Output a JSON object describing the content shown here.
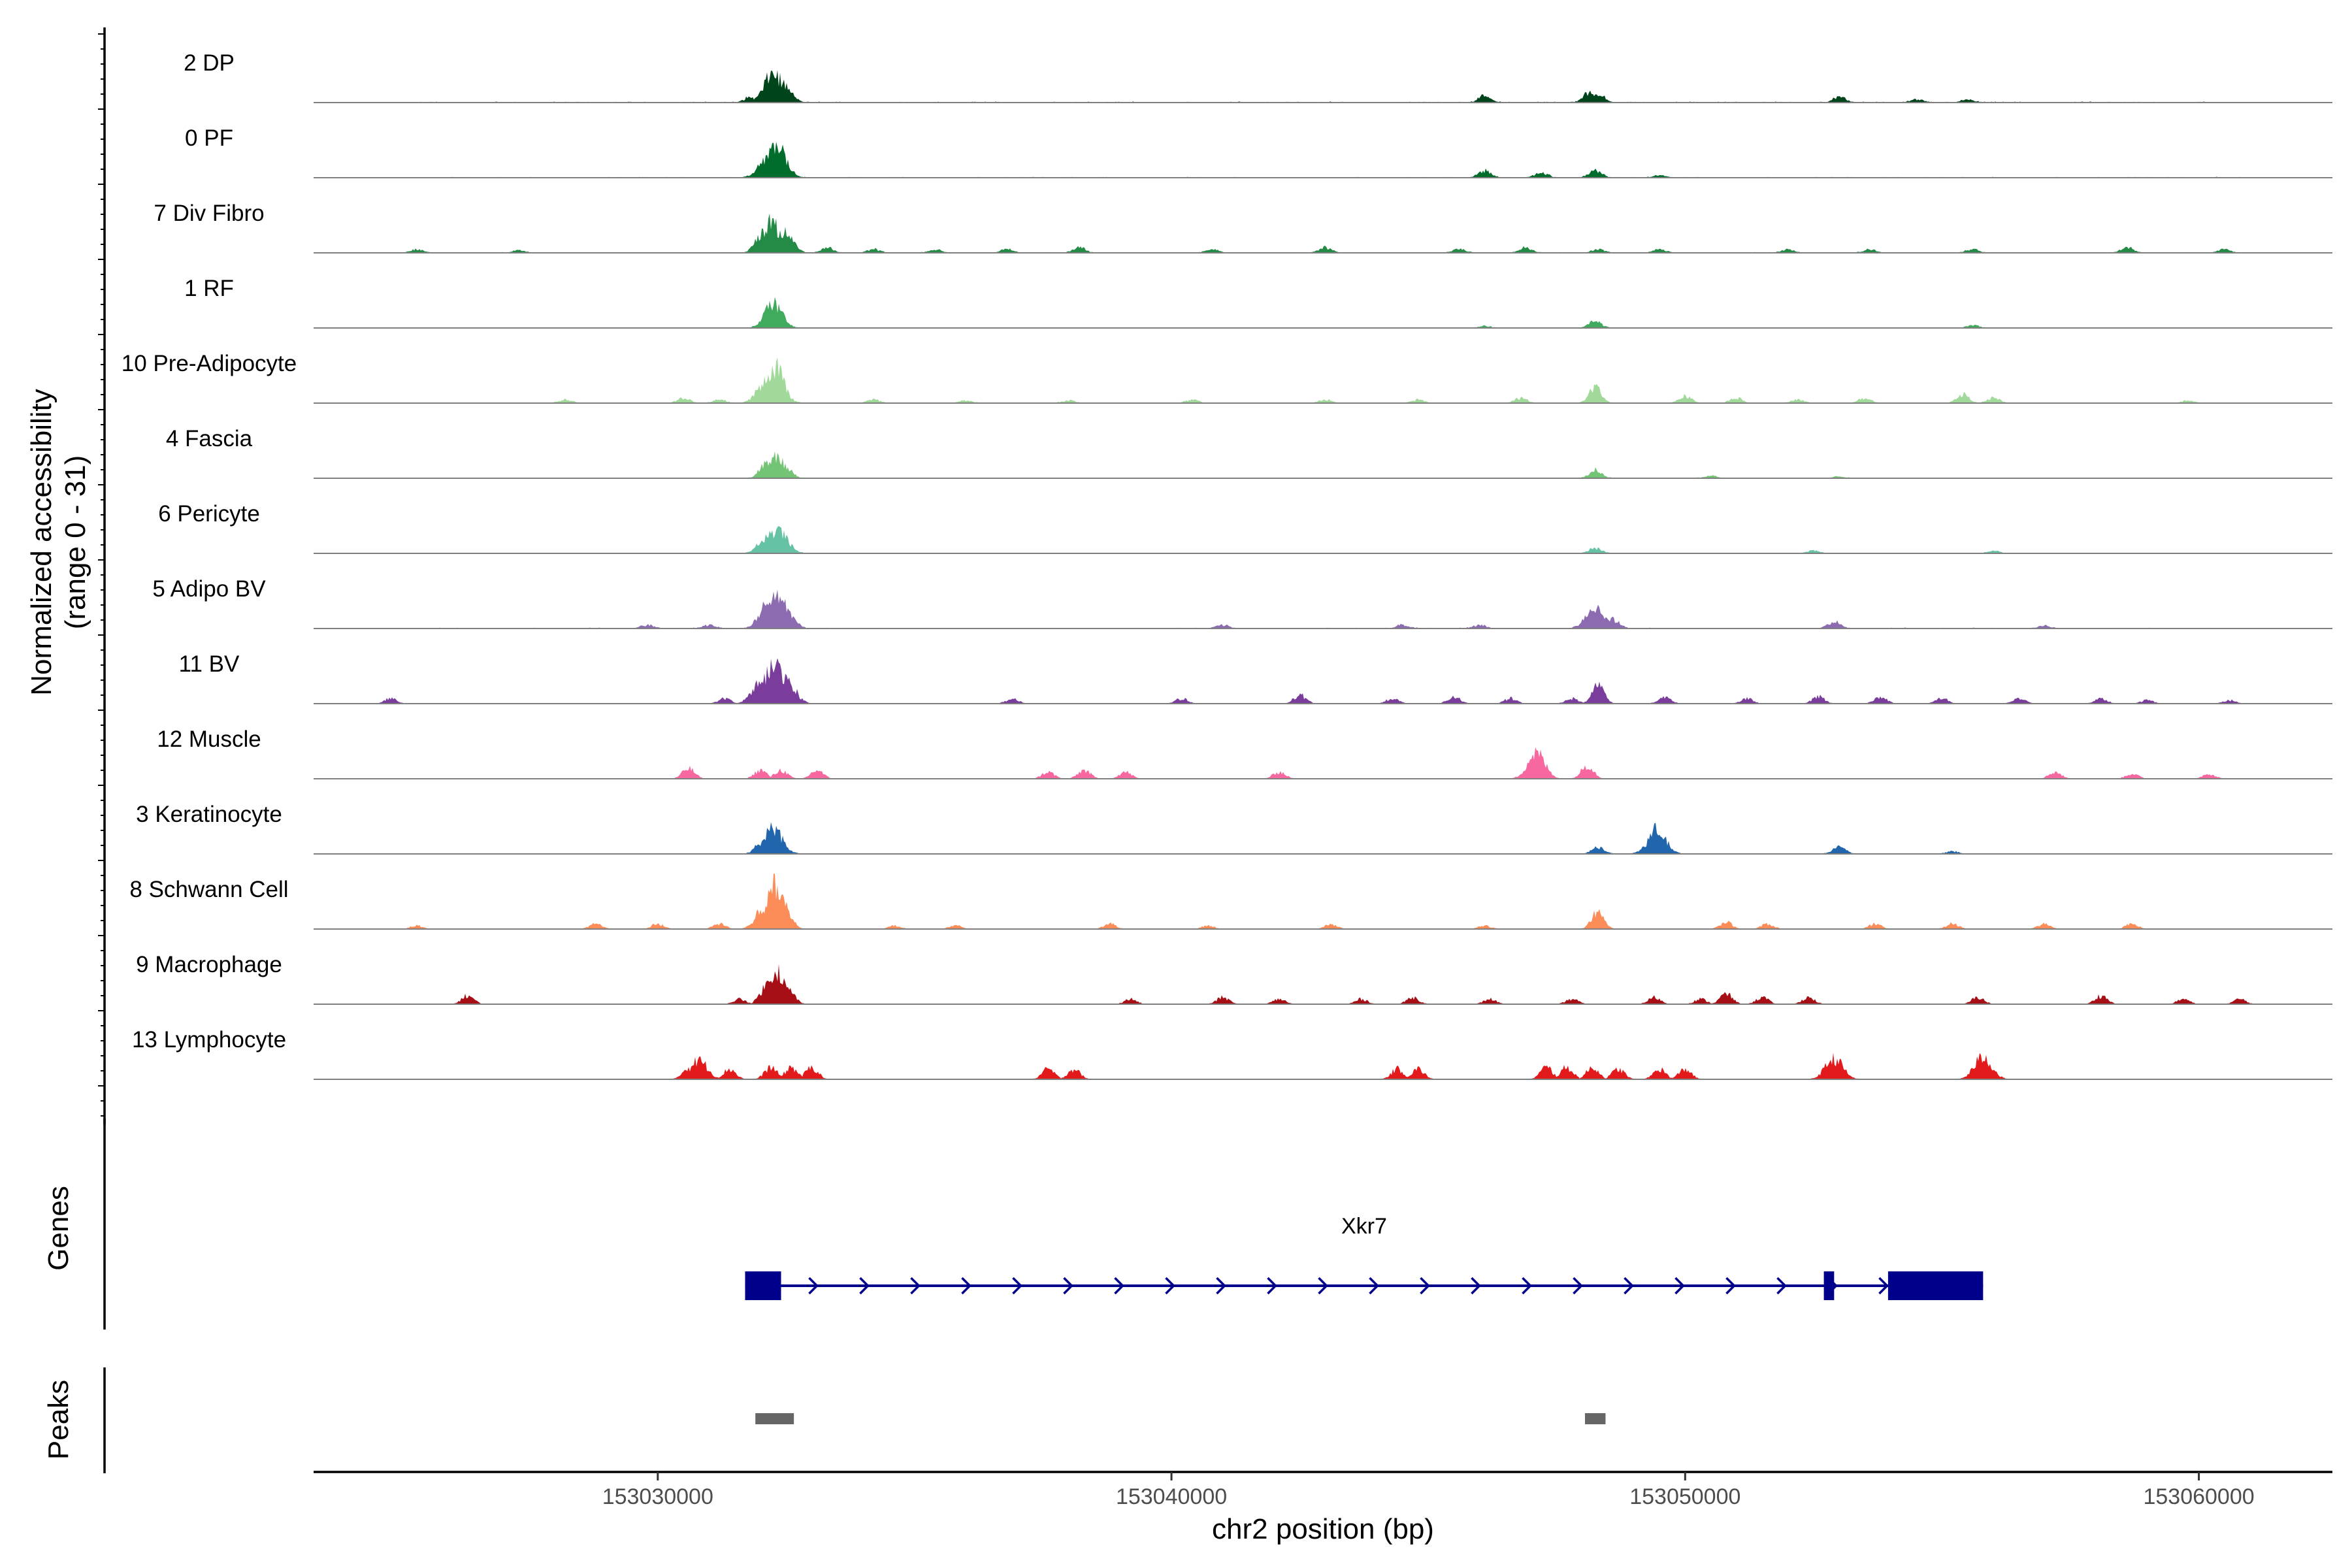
{
  "chart_data": {
    "type": "area",
    "title": "",
    "xlabel": "chr2 position (bp)",
    "ylabel": [
      "Normalized accessibility",
      "(range 0 - 31)"
    ],
    "xlim": [
      153023300,
      153062600
    ],
    "ylim": [
      0,
      31
    ],
    "x_ticks": [
      153030000,
      153040000,
      153050000,
      153060000
    ],
    "x_tick_labels": [
      "153030000",
      "153040000",
      "153050000",
      "153060000"
    ],
    "grid": false,
    "legend": "none",
    "tracks": [
      {
        "name": "2 DP",
        "color": "#00441B",
        "noise": 0.6,
        "peaks": [
          [
            153032100,
            7
          ],
          [
            153032250,
            17
          ],
          [
            153032400,
            11
          ],
          [
            153031800,
            3
          ],
          [
            153046100,
            4
          ],
          [
            153048150,
            6
          ],
          [
            153048300,
            5
          ],
          [
            153053000,
            3
          ],
          [
            153054500,
            1.5
          ],
          [
            153055500,
            1.5
          ]
        ]
      },
      {
        "name": "0 PF",
        "color": "#006D2C",
        "noise": 0.5,
        "peaks": [
          [
            153032150,
            12
          ],
          [
            153032320,
            19
          ],
          [
            153046100,
            4
          ],
          [
            153047200,
            3
          ],
          [
            153048250,
            4
          ],
          [
            153049500,
            1.5
          ]
        ]
      },
      {
        "name": "7 Div Fibro",
        "color": "#238B45",
        "noise": 0.4,
        "peaks": [
          [
            153032000,
            10
          ],
          [
            153032200,
            18
          ],
          [
            153032450,
            12
          ],
          [
            153025300,
            2
          ],
          [
            153027300,
            1.5
          ],
          [
            153033300,
            3
          ],
          [
            153034200,
            2
          ],
          [
            153035400,
            2
          ],
          [
            153036800,
            2
          ],
          [
            153038200,
            3
          ],
          [
            153040800,
            2
          ],
          [
            153043000,
            3
          ],
          [
            153045600,
            2
          ],
          [
            153046900,
            3
          ],
          [
            153048300,
            2
          ],
          [
            153049500,
            2
          ],
          [
            153052000,
            2
          ],
          [
            153053600,
            2
          ],
          [
            153055600,
            2
          ],
          [
            153058600,
            3
          ],
          [
            153060500,
            2
          ]
        ]
      },
      {
        "name": "1 RF",
        "color": "#41AB5D",
        "noise": 0.3,
        "peaks": [
          [
            153032250,
            14
          ],
          [
            153048250,
            4
          ],
          [
            153055600,
            1.5
          ],
          [
            153046100,
            1
          ]
        ]
      },
      {
        "name": "10 Pre-Adipocyte",
        "color": "#A1D99B",
        "noise": 0.3,
        "peaks": [
          [
            153032100,
            12
          ],
          [
            153032280,
            21
          ],
          [
            153032450,
            8
          ],
          [
            153028200,
            2
          ],
          [
            153030500,
            3
          ],
          [
            153031200,
            2
          ],
          [
            153034200,
            2
          ],
          [
            153036000,
            1.5
          ],
          [
            153038000,
            1.5
          ],
          [
            153040400,
            2
          ],
          [
            153043000,
            2
          ],
          [
            153044800,
            2
          ],
          [
            153046800,
            3
          ],
          [
            153048250,
            9
          ],
          [
            153050000,
            4
          ],
          [
            153051000,
            3
          ],
          [
            153052200,
            2
          ],
          [
            153053500,
            3
          ],
          [
            153055400,
            5
          ],
          [
            153056000,
            3
          ],
          [
            153059800,
            1.5
          ]
        ]
      },
      {
        "name": "4 Fascia",
        "color": "#74C476",
        "noise": 0.35,
        "peaks": [
          [
            153032100,
            8
          ],
          [
            153032300,
            12
          ],
          [
            153032500,
            6
          ],
          [
            153048250,
            5
          ],
          [
            153050500,
            1.5
          ],
          [
            153053000,
            1
          ]
        ]
      },
      {
        "name": "6 Pericyte",
        "color": "#66C2A5",
        "noise": 0.35,
        "peaks": [
          [
            153032000,
            6
          ],
          [
            153032150,
            10
          ],
          [
            153032350,
            14
          ],
          [
            153048250,
            3
          ],
          [
            153052500,
            1.5
          ],
          [
            153056000,
            1.5
          ]
        ]
      },
      {
        "name": "5 Adipo BV",
        "color": "#8C6BB1",
        "noise": 0.5,
        "peaks": [
          [
            153032150,
            14
          ],
          [
            153032350,
            20
          ],
          [
            153032600,
            6
          ],
          [
            153031000,
            2
          ],
          [
            153029800,
            2
          ],
          [
            153048250,
            13
          ],
          [
            153048600,
            5
          ],
          [
            153052900,
            4
          ],
          [
            153041000,
            2
          ],
          [
            153044500,
            2
          ],
          [
            153046000,
            2
          ],
          [
            153057000,
            1.5
          ]
        ]
      },
      {
        "name": "11 BV",
        "color": "#7A3D9B",
        "noise": 0.05,
        "peaks": [
          [
            153032000,
            12
          ],
          [
            153032250,
            24
          ],
          [
            153032500,
            14
          ],
          [
            153031300,
            3
          ],
          [
            153024800,
            3
          ],
          [
            153036900,
            3
          ],
          [
            153040200,
            3
          ],
          [
            153042500,
            5
          ],
          [
            153044300,
            3
          ],
          [
            153045500,
            4
          ],
          [
            153046600,
            3
          ],
          [
            153047800,
            3
          ],
          [
            153048300,
            10
          ],
          [
            153049600,
            4
          ],
          [
            153051200,
            3
          ],
          [
            153052600,
            4
          ],
          [
            153053800,
            4
          ],
          [
            153055000,
            3
          ],
          [
            153056500,
            3
          ],
          [
            153058100,
            3
          ],
          [
            153059000,
            2
          ],
          [
            153060600,
            2
          ]
        ]
      },
      {
        "name": "12 Muscle",
        "color": "#F768A1",
        "noise": 0,
        "peaks": [
          [
            153030600,
            6
          ],
          [
            153032000,
            5
          ],
          [
            153032400,
            5
          ],
          [
            153033100,
            5
          ],
          [
            153037600,
            4
          ],
          [
            153038300,
            5
          ],
          [
            153039100,
            4
          ],
          [
            153042100,
            4
          ],
          [
            153047100,
            15
          ],
          [
            153048100,
            8
          ],
          [
            153057200,
            4
          ],
          [
            153058700,
            3
          ],
          [
            153060200,
            3
          ]
        ]
      },
      {
        "name": "3 Keratinocyte",
        "color": "#2166AC",
        "noise": 0.35,
        "peaks": [
          [
            153032250,
            15
          ],
          [
            153032000,
            6
          ],
          [
            153048300,
            4
          ],
          [
            153049450,
            14
          ],
          [
            153049600,
            6
          ],
          [
            153053000,
            4
          ],
          [
            153055200,
            1.5
          ]
        ]
      },
      {
        "name": "8 Schwann Cell",
        "color": "#FC8D59",
        "noise": 0.15,
        "peaks": [
          [
            153032100,
            14
          ],
          [
            153032300,
            26
          ],
          [
            153032500,
            10
          ],
          [
            153025300,
            2
          ],
          [
            153028800,
            3
          ],
          [
            153030000,
            3
          ],
          [
            153031200,
            3
          ],
          [
            153034600,
            2
          ],
          [
            153035800,
            2
          ],
          [
            153038800,
            3
          ],
          [
            153040700,
            2
          ],
          [
            153043100,
            3
          ],
          [
            153046100,
            2
          ],
          [
            153048300,
            10
          ],
          [
            153050800,
            4
          ],
          [
            153051600,
            3
          ],
          [
            153053700,
            3
          ],
          [
            153055200,
            3
          ],
          [
            153057000,
            3
          ],
          [
            153058700,
            3
          ]
        ]
      },
      {
        "name": "9 Macrophage",
        "color": "#A50F15",
        "noise": 0,
        "peaks": [
          [
            153026300,
            5
          ],
          [
            153031600,
            3
          ],
          [
            153032100,
            10
          ],
          [
            153032300,
            20
          ],
          [
            153032550,
            8
          ],
          [
            153039200,
            3
          ],
          [
            153041000,
            4
          ],
          [
            153042100,
            3
          ],
          [
            153043700,
            3
          ],
          [
            153044700,
            4
          ],
          [
            153046200,
            3
          ],
          [
            153047800,
            3
          ],
          [
            153049400,
            4
          ],
          [
            153050300,
            3
          ],
          [
            153050800,
            6
          ],
          [
            153051500,
            4
          ],
          [
            153052400,
            4
          ],
          [
            153055700,
            4
          ],
          [
            153058100,
            5
          ],
          [
            153059700,
            3
          ],
          [
            153060800,
            3
          ]
        ]
      },
      {
        "name": "13 Lymphocyte",
        "color": "#E31A1C",
        "noise": 0,
        "peaks": [
          [
            153030600,
            7
          ],
          [
            153030800,
            11
          ],
          [
            153031400,
            6
          ],
          [
            153032200,
            7
          ],
          [
            153032600,
            7
          ],
          [
            153033000,
            7
          ],
          [
            153037600,
            6
          ],
          [
            153038100,
            6
          ],
          [
            153044400,
            6
          ],
          [
            153044800,
            6
          ],
          [
            153047300,
            7
          ],
          [
            153047700,
            7
          ],
          [
            153048200,
            7
          ],
          [
            153048700,
            6
          ],
          [
            153049500,
            6
          ],
          [
            153050000,
            6
          ],
          [
            153052900,
            12
          ],
          [
            153055800,
            13
          ]
        ]
      }
    ],
    "genes_label": "Genes",
    "genes": [
      {
        "name": "Xkr7",
        "start": 153031700,
        "end": 153055800,
        "strand": "+",
        "exons": [
          [
            153031700,
            153032400
          ],
          [
            153052700,
            153052900
          ],
          [
            153053950,
            153055800
          ]
        ]
      }
    ],
    "peaks_label": "Peaks",
    "peak_regions": [
      [
        153031900,
        153032650
      ],
      [
        153048050,
        153048450
      ]
    ]
  }
}
